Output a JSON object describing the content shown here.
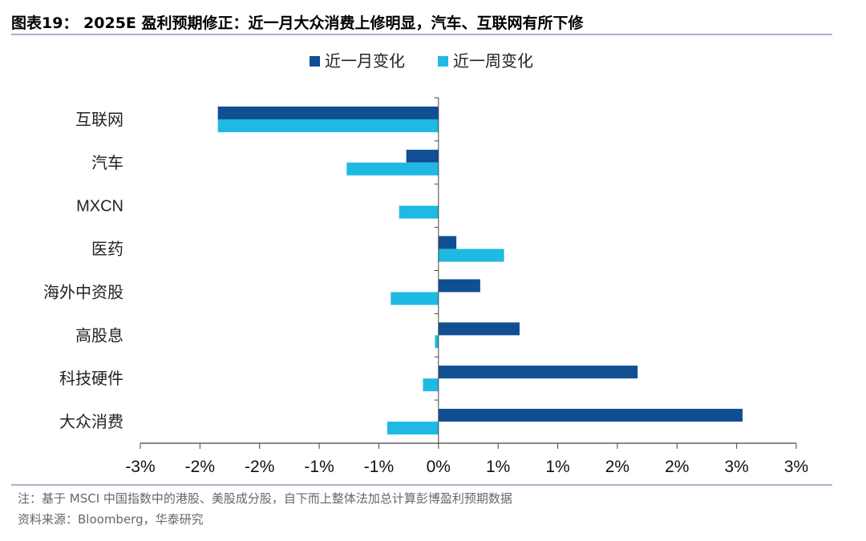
{
  "figure": {
    "title": "图表19： 2025E 盈利预期修正：近一月大众消费上修明显，汽车、互联网有所下修",
    "note": "注：基于 MSCI 中国指数中的港股、美股成分股，自下而上整体法加总计算彭博盈利预期数据",
    "source": "资料来源：Bloomberg，华泰研究"
  },
  "chart_data": {
    "type": "bar",
    "orientation": "horizontal",
    "categories": [
      "互联网",
      "汽车",
      "MXCN",
      "医药",
      "海外中资股",
      "高股息",
      "科技硬件",
      "大众消费"
    ],
    "series": [
      {
        "name": "近一月变化",
        "color": "#0f4f92",
        "values": [
          -1.85,
          -0.27,
          0.0,
          0.15,
          0.35,
          0.68,
          1.67,
          2.55
        ]
      },
      {
        "name": "近一周变化",
        "color": "#1fb9e3",
        "values": [
          -1.85,
          -0.77,
          -0.33,
          0.55,
          -0.4,
          -0.03,
          -0.13,
          -0.43
        ]
      }
    ],
    "xlim": [
      -2.5,
      3.0
    ],
    "ticks": [
      -2.5,
      -2.0,
      -1.5,
      -1.0,
      -0.5,
      0.0,
      0.5,
      1.0,
      1.5,
      2.0,
      2.5,
      3.0
    ],
    "tick_labels": [
      "-3%",
      "-2%",
      "-2%",
      "-1%",
      "-1%",
      "0%",
      "1%",
      "1%",
      "2%",
      "2%",
      "3%",
      "3%"
    ],
    "legend_position": "top-center",
    "grid": false
  }
}
